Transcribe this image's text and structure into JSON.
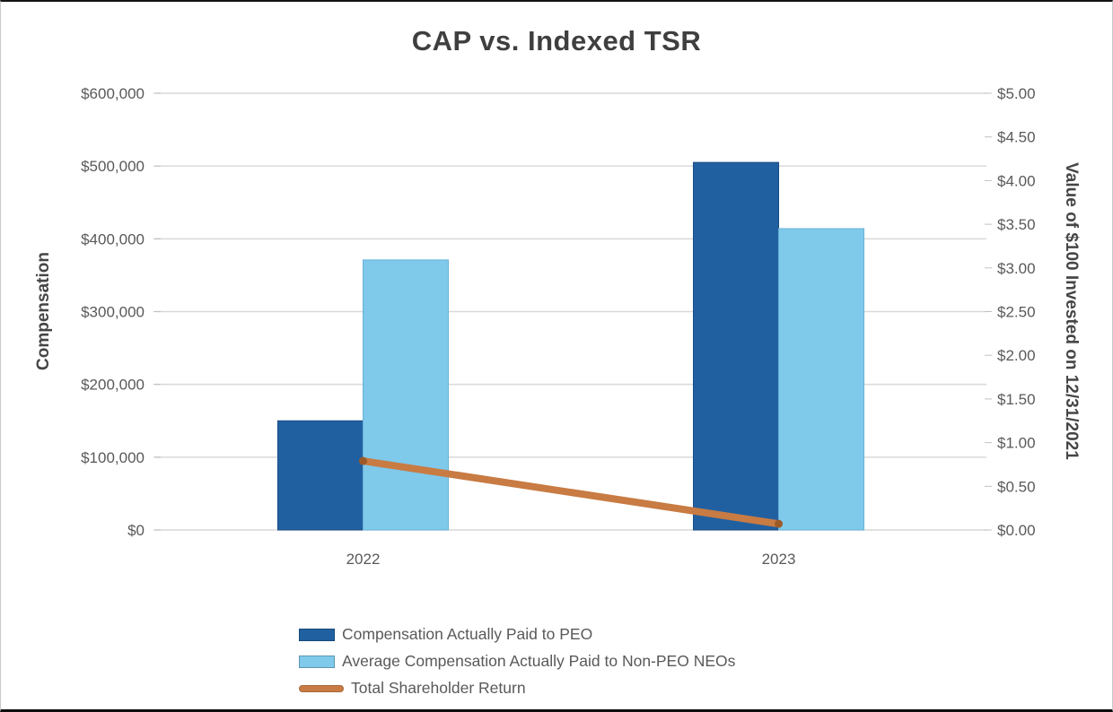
{
  "chart_data": {
    "type": "combo_bar_line",
    "title": "CAP vs. Indexed TSR",
    "categories": [
      "2022",
      "2023"
    ],
    "series": [
      {
        "name": "Compensation Actually Paid to PEO",
        "type": "bar",
        "axis": "left",
        "color": "#2160A0",
        "border": "#1A4E85",
        "values": [
          150000,
          505000
        ]
      },
      {
        "name": "Average Compensation Actually Paid to Non-PEO NEOs",
        "type": "bar",
        "axis": "left",
        "color": "#7FC9EB",
        "border": "#66B3D9",
        "values": [
          371000,
          414000
        ]
      },
      {
        "name": "Total Shareholder Return",
        "type": "line",
        "axis": "right",
        "color": "#C87B43",
        "cap_color": "#9C5A28",
        "values": [
          0.79,
          0.07
        ]
      }
    ],
    "left_axis": {
      "label": "Compensation",
      "min": 0,
      "max": 600000,
      "step": 100000,
      "ticks": [
        "$0",
        "$100,000",
        "$200,000",
        "$300,000",
        "$400,000",
        "$500,000",
        "$600,000"
      ]
    },
    "right_axis": {
      "label": "Value of $100 Invested on 12/31/2021",
      "min": 0,
      "max": 5,
      "step": 0.5,
      "ticks": [
        "$0.00",
        "$0.50",
        "$1.00",
        "$1.50",
        "$2.00",
        "$2.50",
        "$3.00",
        "$3.50",
        "$4.00",
        "$4.50",
        "$5.00"
      ]
    },
    "grid": true,
    "grid_color": "#D9D9D9",
    "tick_mark_color": "#C0C0C0",
    "text_color": "#595959",
    "title_color": "#3F3F3F",
    "legend_position": "bottom-left"
  }
}
